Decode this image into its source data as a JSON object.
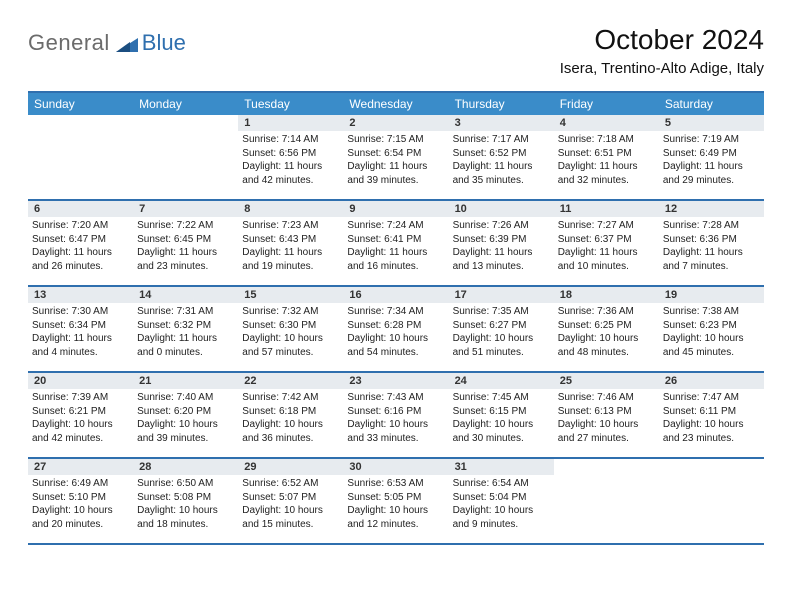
{
  "logo": {
    "text1": "General",
    "text2": "Blue"
  },
  "title": "October 2024",
  "location": "Isera, Trentino-Alto Adige, Italy",
  "colors": {
    "headerBg": "#3a8cc9",
    "headerText": "#ffffff",
    "ruleColor": "#2f6fae",
    "dayNumBg": "#e7ebef",
    "logoGray": "#6b6b6b",
    "logoBlue": "#2f6fae",
    "pageBg": "#ffffff"
  },
  "typography": {
    "title_fontsize": 28,
    "location_fontsize": 15,
    "header_fontsize": 12,
    "daynum_fontsize": 11,
    "body_fontsize": 10
  },
  "dayHeaders": [
    "Sunday",
    "Monday",
    "Tuesday",
    "Wednesday",
    "Thursday",
    "Friday",
    "Saturday"
  ],
  "weeks": [
    [
      {
        "num": "",
        "sunrise": "",
        "sunset": "",
        "daylight": ""
      },
      {
        "num": "",
        "sunrise": "",
        "sunset": "",
        "daylight": ""
      },
      {
        "num": "1",
        "sunrise": "Sunrise: 7:14 AM",
        "sunset": "Sunset: 6:56 PM",
        "daylight": "Daylight: 11 hours and 42 minutes."
      },
      {
        "num": "2",
        "sunrise": "Sunrise: 7:15 AM",
        "sunset": "Sunset: 6:54 PM",
        "daylight": "Daylight: 11 hours and 39 minutes."
      },
      {
        "num": "3",
        "sunrise": "Sunrise: 7:17 AM",
        "sunset": "Sunset: 6:52 PM",
        "daylight": "Daylight: 11 hours and 35 minutes."
      },
      {
        "num": "4",
        "sunrise": "Sunrise: 7:18 AM",
        "sunset": "Sunset: 6:51 PM",
        "daylight": "Daylight: 11 hours and 32 minutes."
      },
      {
        "num": "5",
        "sunrise": "Sunrise: 7:19 AM",
        "sunset": "Sunset: 6:49 PM",
        "daylight": "Daylight: 11 hours and 29 minutes."
      }
    ],
    [
      {
        "num": "6",
        "sunrise": "Sunrise: 7:20 AM",
        "sunset": "Sunset: 6:47 PM",
        "daylight": "Daylight: 11 hours and 26 minutes."
      },
      {
        "num": "7",
        "sunrise": "Sunrise: 7:22 AM",
        "sunset": "Sunset: 6:45 PM",
        "daylight": "Daylight: 11 hours and 23 minutes."
      },
      {
        "num": "8",
        "sunrise": "Sunrise: 7:23 AM",
        "sunset": "Sunset: 6:43 PM",
        "daylight": "Daylight: 11 hours and 19 minutes."
      },
      {
        "num": "9",
        "sunrise": "Sunrise: 7:24 AM",
        "sunset": "Sunset: 6:41 PM",
        "daylight": "Daylight: 11 hours and 16 minutes."
      },
      {
        "num": "10",
        "sunrise": "Sunrise: 7:26 AM",
        "sunset": "Sunset: 6:39 PM",
        "daylight": "Daylight: 11 hours and 13 minutes."
      },
      {
        "num": "11",
        "sunrise": "Sunrise: 7:27 AM",
        "sunset": "Sunset: 6:37 PM",
        "daylight": "Daylight: 11 hours and 10 minutes."
      },
      {
        "num": "12",
        "sunrise": "Sunrise: 7:28 AM",
        "sunset": "Sunset: 6:36 PM",
        "daylight": "Daylight: 11 hours and 7 minutes."
      }
    ],
    [
      {
        "num": "13",
        "sunrise": "Sunrise: 7:30 AM",
        "sunset": "Sunset: 6:34 PM",
        "daylight": "Daylight: 11 hours and 4 minutes."
      },
      {
        "num": "14",
        "sunrise": "Sunrise: 7:31 AM",
        "sunset": "Sunset: 6:32 PM",
        "daylight": "Daylight: 11 hours and 0 minutes."
      },
      {
        "num": "15",
        "sunrise": "Sunrise: 7:32 AM",
        "sunset": "Sunset: 6:30 PM",
        "daylight": "Daylight: 10 hours and 57 minutes."
      },
      {
        "num": "16",
        "sunrise": "Sunrise: 7:34 AM",
        "sunset": "Sunset: 6:28 PM",
        "daylight": "Daylight: 10 hours and 54 minutes."
      },
      {
        "num": "17",
        "sunrise": "Sunrise: 7:35 AM",
        "sunset": "Sunset: 6:27 PM",
        "daylight": "Daylight: 10 hours and 51 minutes."
      },
      {
        "num": "18",
        "sunrise": "Sunrise: 7:36 AM",
        "sunset": "Sunset: 6:25 PM",
        "daylight": "Daylight: 10 hours and 48 minutes."
      },
      {
        "num": "19",
        "sunrise": "Sunrise: 7:38 AM",
        "sunset": "Sunset: 6:23 PM",
        "daylight": "Daylight: 10 hours and 45 minutes."
      }
    ],
    [
      {
        "num": "20",
        "sunrise": "Sunrise: 7:39 AM",
        "sunset": "Sunset: 6:21 PM",
        "daylight": "Daylight: 10 hours and 42 minutes."
      },
      {
        "num": "21",
        "sunrise": "Sunrise: 7:40 AM",
        "sunset": "Sunset: 6:20 PM",
        "daylight": "Daylight: 10 hours and 39 minutes."
      },
      {
        "num": "22",
        "sunrise": "Sunrise: 7:42 AM",
        "sunset": "Sunset: 6:18 PM",
        "daylight": "Daylight: 10 hours and 36 minutes."
      },
      {
        "num": "23",
        "sunrise": "Sunrise: 7:43 AM",
        "sunset": "Sunset: 6:16 PM",
        "daylight": "Daylight: 10 hours and 33 minutes."
      },
      {
        "num": "24",
        "sunrise": "Sunrise: 7:45 AM",
        "sunset": "Sunset: 6:15 PM",
        "daylight": "Daylight: 10 hours and 30 minutes."
      },
      {
        "num": "25",
        "sunrise": "Sunrise: 7:46 AM",
        "sunset": "Sunset: 6:13 PM",
        "daylight": "Daylight: 10 hours and 27 minutes."
      },
      {
        "num": "26",
        "sunrise": "Sunrise: 7:47 AM",
        "sunset": "Sunset: 6:11 PM",
        "daylight": "Daylight: 10 hours and 23 minutes."
      }
    ],
    [
      {
        "num": "27",
        "sunrise": "Sunrise: 6:49 AM",
        "sunset": "Sunset: 5:10 PM",
        "daylight": "Daylight: 10 hours and 20 minutes."
      },
      {
        "num": "28",
        "sunrise": "Sunrise: 6:50 AM",
        "sunset": "Sunset: 5:08 PM",
        "daylight": "Daylight: 10 hours and 18 minutes."
      },
      {
        "num": "29",
        "sunrise": "Sunrise: 6:52 AM",
        "sunset": "Sunset: 5:07 PM",
        "daylight": "Daylight: 10 hours and 15 minutes."
      },
      {
        "num": "30",
        "sunrise": "Sunrise: 6:53 AM",
        "sunset": "Sunset: 5:05 PM",
        "daylight": "Daylight: 10 hours and 12 minutes."
      },
      {
        "num": "31",
        "sunrise": "Sunrise: 6:54 AM",
        "sunset": "Sunset: 5:04 PM",
        "daylight": "Daylight: 10 hours and 9 minutes."
      },
      {
        "num": "",
        "sunrise": "",
        "sunset": "",
        "daylight": ""
      },
      {
        "num": "",
        "sunrise": "",
        "sunset": "",
        "daylight": ""
      }
    ]
  ]
}
